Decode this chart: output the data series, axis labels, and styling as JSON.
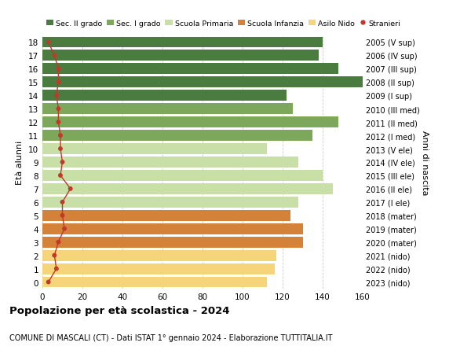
{
  "ages": [
    18,
    17,
    16,
    15,
    14,
    13,
    12,
    11,
    10,
    9,
    8,
    7,
    6,
    5,
    4,
    3,
    2,
    1,
    0
  ],
  "right_labels": [
    "2005 (V sup)",
    "2006 (IV sup)",
    "2007 (III sup)",
    "2008 (II sup)",
    "2009 (I sup)",
    "2010 (III med)",
    "2011 (II med)",
    "2012 (I med)",
    "2013 (V ele)",
    "2014 (IV ele)",
    "2015 (III ele)",
    "2016 (II ele)",
    "2017 (I ele)",
    "2018 (mater)",
    "2019 (mater)",
    "2020 (mater)",
    "2021 (nido)",
    "2022 (nido)",
    "2023 (nido)"
  ],
  "bar_values": [
    140,
    138,
    148,
    162,
    122,
    125,
    148,
    135,
    112,
    128,
    140,
    145,
    128,
    124,
    130,
    130,
    117,
    116,
    112
  ],
  "stranieri_values": [
    3,
    6,
    8,
    8,
    7,
    8,
    8,
    9,
    9,
    10,
    9,
    14,
    10,
    10,
    11,
    8,
    6,
    7,
    3
  ],
  "bar_colors": {
    "18": "#4a7c3f",
    "17": "#4a7c3f",
    "16": "#4a7c3f",
    "15": "#4a7c3f",
    "14": "#4a7c3f",
    "13": "#7da85b",
    "12": "#7da85b",
    "11": "#7da85b",
    "10": "#c8dfa8",
    "9": "#c8dfa8",
    "8": "#c8dfa8",
    "7": "#c8dfa8",
    "6": "#c8dfa8",
    "5": "#d4813a",
    "4": "#d4813a",
    "3": "#d4813a",
    "2": "#f5d47a",
    "1": "#f5d47a",
    "0": "#f5d47a"
  },
  "legend_labels": [
    "Sec. II grado",
    "Sec. I grado",
    "Scuola Primaria",
    "Scuola Infanzia",
    "Asilo Nido",
    "Stranieri"
  ],
  "legend_colors": [
    "#4a7c3f",
    "#7da85b",
    "#c8dfa8",
    "#d4813a",
    "#f5d47a",
    "#c0392b"
  ],
  "title": "Popolazione per età scolastica - 2024",
  "subtitle": "COMUNE DI MASCALI (CT) - Dati ISTAT 1° gennaio 2024 - Elaborazione TUTTITALIA.IT",
  "ylabel": "Età alunni",
  "right_ylabel": "Anni di nascita",
  "xlim": [
    0,
    160
  ],
  "xticks": [
    0,
    20,
    40,
    60,
    80,
    100,
    120,
    140,
    160
  ],
  "bg_color": "#ffffff",
  "grid_color": "#cccccc",
  "stranieri_color": "#c0392b"
}
